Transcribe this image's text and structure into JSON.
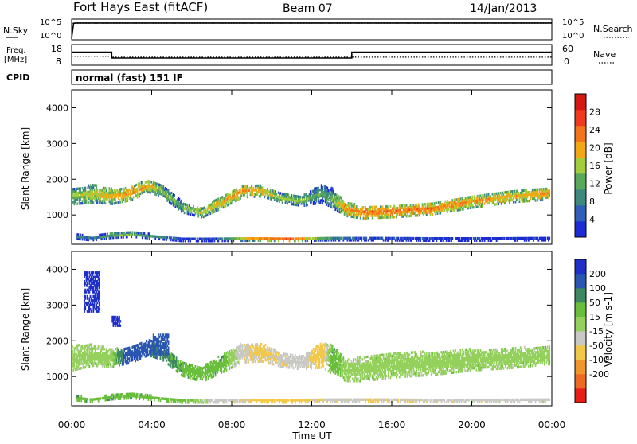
{
  "header": {
    "station": "Fort Hays East (fitACF)",
    "beam": "Beam 07",
    "date": "14/Jan/2013"
  },
  "status_panels": {
    "nsky_label": "N.Sky",
    "nsearch_label": "N.Search",
    "noise_ticks": [
      "10^5",
      "10^0"
    ],
    "freq_label_line1": "Freq.",
    "freq_label_line2": "[MHz]",
    "freq_ticks": [
      "18",
      "8"
    ],
    "nave_label": "Nave",
    "nave_ticks": [
      "60",
      "0"
    ],
    "cpid_label": "CPID",
    "cpid_value": "normal (fast) 151 IF"
  },
  "x_axis": {
    "label": "Time UT",
    "ticks": [
      "00:00",
      "04:00",
      "08:00",
      "12:00",
      "16:00",
      "20:00",
      "00:00"
    ]
  },
  "colors": {
    "power": [
      "#1c2bd4",
      "#2f5fb8",
      "#3d8a7d",
      "#58a95c",
      "#a3cd3c",
      "#f4a714",
      "#f2751b",
      "#ef3b1d",
      "#d11a12"
    ],
    "velocity": [
      "#1f2fc8",
      "#2a56b0",
      "#3d8860",
      "#69be3c",
      "#94d05c",
      "#c8c8c4",
      "#f2c84a",
      "#f0962c",
      "#ee6a24",
      "#e61e16"
    ]
  },
  "chart_data": [
    {
      "type": "line",
      "panel": "noise",
      "title": "",
      "series": [
        {
          "name": "N.Sky",
          "x_hours": [
            0,
            0.1,
            0.2,
            24
          ],
          "values": [
            1,
            50000,
            60000,
            60000
          ]
        },
        {
          "name": "N.Search",
          "x_hours": [
            0,
            24
          ],
          "values": [
            50000,
            50000
          ]
        }
      ],
      "ylim": [
        1,
        100000
      ],
      "yscale": "log"
    },
    {
      "type": "line",
      "panel": "frequency",
      "series": [
        {
          "name": "Freq. [MHz]",
          "x_hours": [
            0,
            2,
            2,
            14,
            14,
            24
          ],
          "values": [
            14.6,
            14.6,
            11.2,
            11.2,
            14.6,
            14.6
          ]
        },
        {
          "name": "Nave",
          "x_hours": [
            0,
            2,
            2,
            24
          ],
          "values": [
            25,
            25,
            22,
            22
          ]
        }
      ],
      "ylim": [
        8,
        18
      ]
    },
    {
      "type": "heatmap",
      "panel": "power",
      "xlabel": "Time UT",
      "ylabel": "Slant Range [km]",
      "ylim": [
        180,
        4500
      ],
      "y_ticks": [
        1000,
        2000,
        3000,
        4000
      ],
      "colorbar": {
        "label": "Power [dB]",
        "ticks": [
          4,
          8,
          12,
          16,
          20,
          24,
          28
        ],
        "range": [
          0,
          32
        ]
      },
      "bands": [
        {
          "x": [
            0,
            1,
            2,
            3,
            3.8,
            4.5,
            5.5,
            6.5,
            7.5,
            8.5,
            9.5,
            10.5,
            11.5,
            12.5,
            13,
            13.7,
            14.5,
            16,
            18,
            20,
            22,
            23.9
          ],
          "center": [
            1500,
            1580,
            1500,
            1600,
            1800,
            1650,
            1200,
            1050,
            1350,
            1650,
            1650,
            1450,
            1380,
            1580,
            1450,
            1150,
            1050,
            1080,
            1150,
            1350,
            1500,
            1580
          ],
          "thickness": [
            450,
            500,
            420,
            400,
            350,
            320,
            300,
            280,
            350,
            350,
            300,
            250,
            300,
            500,
            550,
            400,
            330,
            330,
            320,
            330,
            330,
            330
          ],
          "power": [
            16,
            18,
            20,
            22,
            20,
            16,
            14,
            18,
            20,
            22,
            20,
            16,
            16,
            12,
            14,
            22,
            24,
            24,
            24,
            22,
            20,
            22
          ]
        },
        {
          "x": [
            0.2,
            1,
            2,
            3,
            4,
            5.5,
            7,
            9,
            11,
            13,
            15,
            18,
            21,
            23.9
          ],
          "center": [
            380,
            320,
            420,
            440,
            380,
            300,
            300,
            320,
            300,
            330,
            320,
            310,
            310,
            320
          ],
          "thickness": [
            140,
            100,
            160,
            140,
            120,
            100,
            100,
            120,
            100,
            120,
            100,
            100,
            100,
            100
          ],
          "power": [
            10,
            6,
            14,
            16,
            10,
            6,
            6,
            20,
            26,
            8,
            6,
            4,
            4,
            4
          ]
        }
      ]
    },
    {
      "type": "heatmap",
      "panel": "velocity",
      "xlabel": "Time UT",
      "ylabel": "Slant Range [km]",
      "ylim": [
        180,
        4500
      ],
      "y_ticks": [
        1000,
        2000,
        3000,
        4000
      ],
      "colorbar": {
        "label": "Velocity [m s-1]",
        "ticks": [
          200,
          100,
          50,
          15,
          -15,
          -50,
          -100,
          -200
        ],
        "range": [
          -250,
          250
        ]
      },
      "bands": [
        {
          "x": [
            0,
            1,
            2,
            3,
            3.8,
            4.5,
            5.5,
            6.5,
            7.5,
            8.5,
            9.5,
            10.5,
            11.5,
            12.5,
            13,
            13.7,
            14.5,
            16,
            18,
            20,
            22,
            23.9
          ],
          "center": [
            1500,
            1580,
            1500,
            1600,
            1800,
            1650,
            1200,
            1050,
            1350,
            1650,
            1650,
            1450,
            1380,
            1580,
            1450,
            1150,
            1200,
            1300,
            1350,
            1450,
            1500,
            1580
          ],
          "thickness": [
            700,
            600,
            500,
            450,
            450,
            400,
            400,
            420,
            500,
            550,
            500,
            400,
            400,
            700,
            800,
            600,
            700,
            700,
            650,
            600,
            560,
            500
          ],
          "velocity": [
            0,
            0,
            0,
            200,
            120,
            70,
            40,
            30,
            40,
            -40,
            -60,
            -40,
            -30,
            -80,
            40,
            0,
            0,
            0,
            0,
            0,
            0,
            0
          ]
        },
        {
          "x": [
            0.2,
            1,
            2,
            3,
            4,
            5.5,
            7,
            9,
            11,
            13,
            15,
            18,
            21,
            23.9
          ],
          "center": [
            380,
            320,
            420,
            440,
            380,
            300,
            300,
            320,
            300,
            330,
            320,
            310,
            310,
            320
          ],
          "thickness": [
            140,
            100,
            160,
            140,
            120,
            100,
            100,
            120,
            100,
            120,
            100,
            100,
            100,
            100
          ],
          "velocity": [
            40,
            30,
            40,
            40,
            30,
            20,
            -20,
            -60,
            -70,
            -40,
            -50,
            -40,
            -30,
            -30
          ]
        }
      ],
      "patches": [
        {
          "x": [
            0.6,
            1.4
          ],
          "y": [
            2800,
            3900
          ],
          "velocity": 220
        },
        {
          "x": [
            2.0,
            2.4
          ],
          "y": [
            2400,
            2700
          ],
          "velocity": 220
        },
        {
          "x": [
            4.0,
            4.8
          ],
          "y": [
            1600,
            2200
          ],
          "velocity": 140
        }
      ]
    }
  ]
}
